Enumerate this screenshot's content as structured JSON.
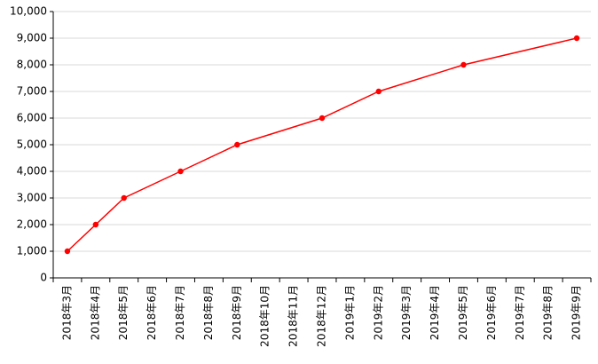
{
  "chart_data": {
    "type": "line",
    "xticks": [
      "2018年3月",
      "2018年4月",
      "2018年5月",
      "2018年6月",
      "2018年7月",
      "2018年8月",
      "2018年9月",
      "2018年10月",
      "2018年11月",
      "2018年12月",
      "2019年1月",
      "2019年2月",
      "2019年3月",
      "2019年4月",
      "2019年5月",
      "2019年6月",
      "2019年7月",
      "2019年8月",
      "2019年9月"
    ],
    "x": [
      "2018年3月",
      "2018年4月",
      "2018年5月",
      "2018年7月",
      "2018年9月",
      "2018年12月",
      "2019年2月",
      "2019年5月",
      "2019年9月"
    ],
    "values": [
      1000,
      2000,
      3000,
      4000,
      5000,
      6000,
      7000,
      8000,
      9000
    ],
    "color": "#ff0000",
    "ylim": [
      0,
      10000
    ],
    "yticks": [
      0,
      {
        "value": 1000,
        "label": "1,000"
      },
      {
        "value": 2000,
        "label": "2,000"
      },
      {
        "value": 3000,
        "label": "3,000"
      },
      {
        "value": 4000,
        "label": "4,000"
      },
      {
        "value": 5000,
        "label": "5,000"
      },
      {
        "value": 6000,
        "label": "6,000"
      },
      {
        "value": 7000,
        "label": "7,000"
      },
      {
        "value": 8000,
        "label": "8,000"
      },
      {
        "value": 9000,
        "label": "9,000"
      },
      {
        "value": 10000,
        "label": "10,000"
      }
    ],
    "grid": true
  }
}
